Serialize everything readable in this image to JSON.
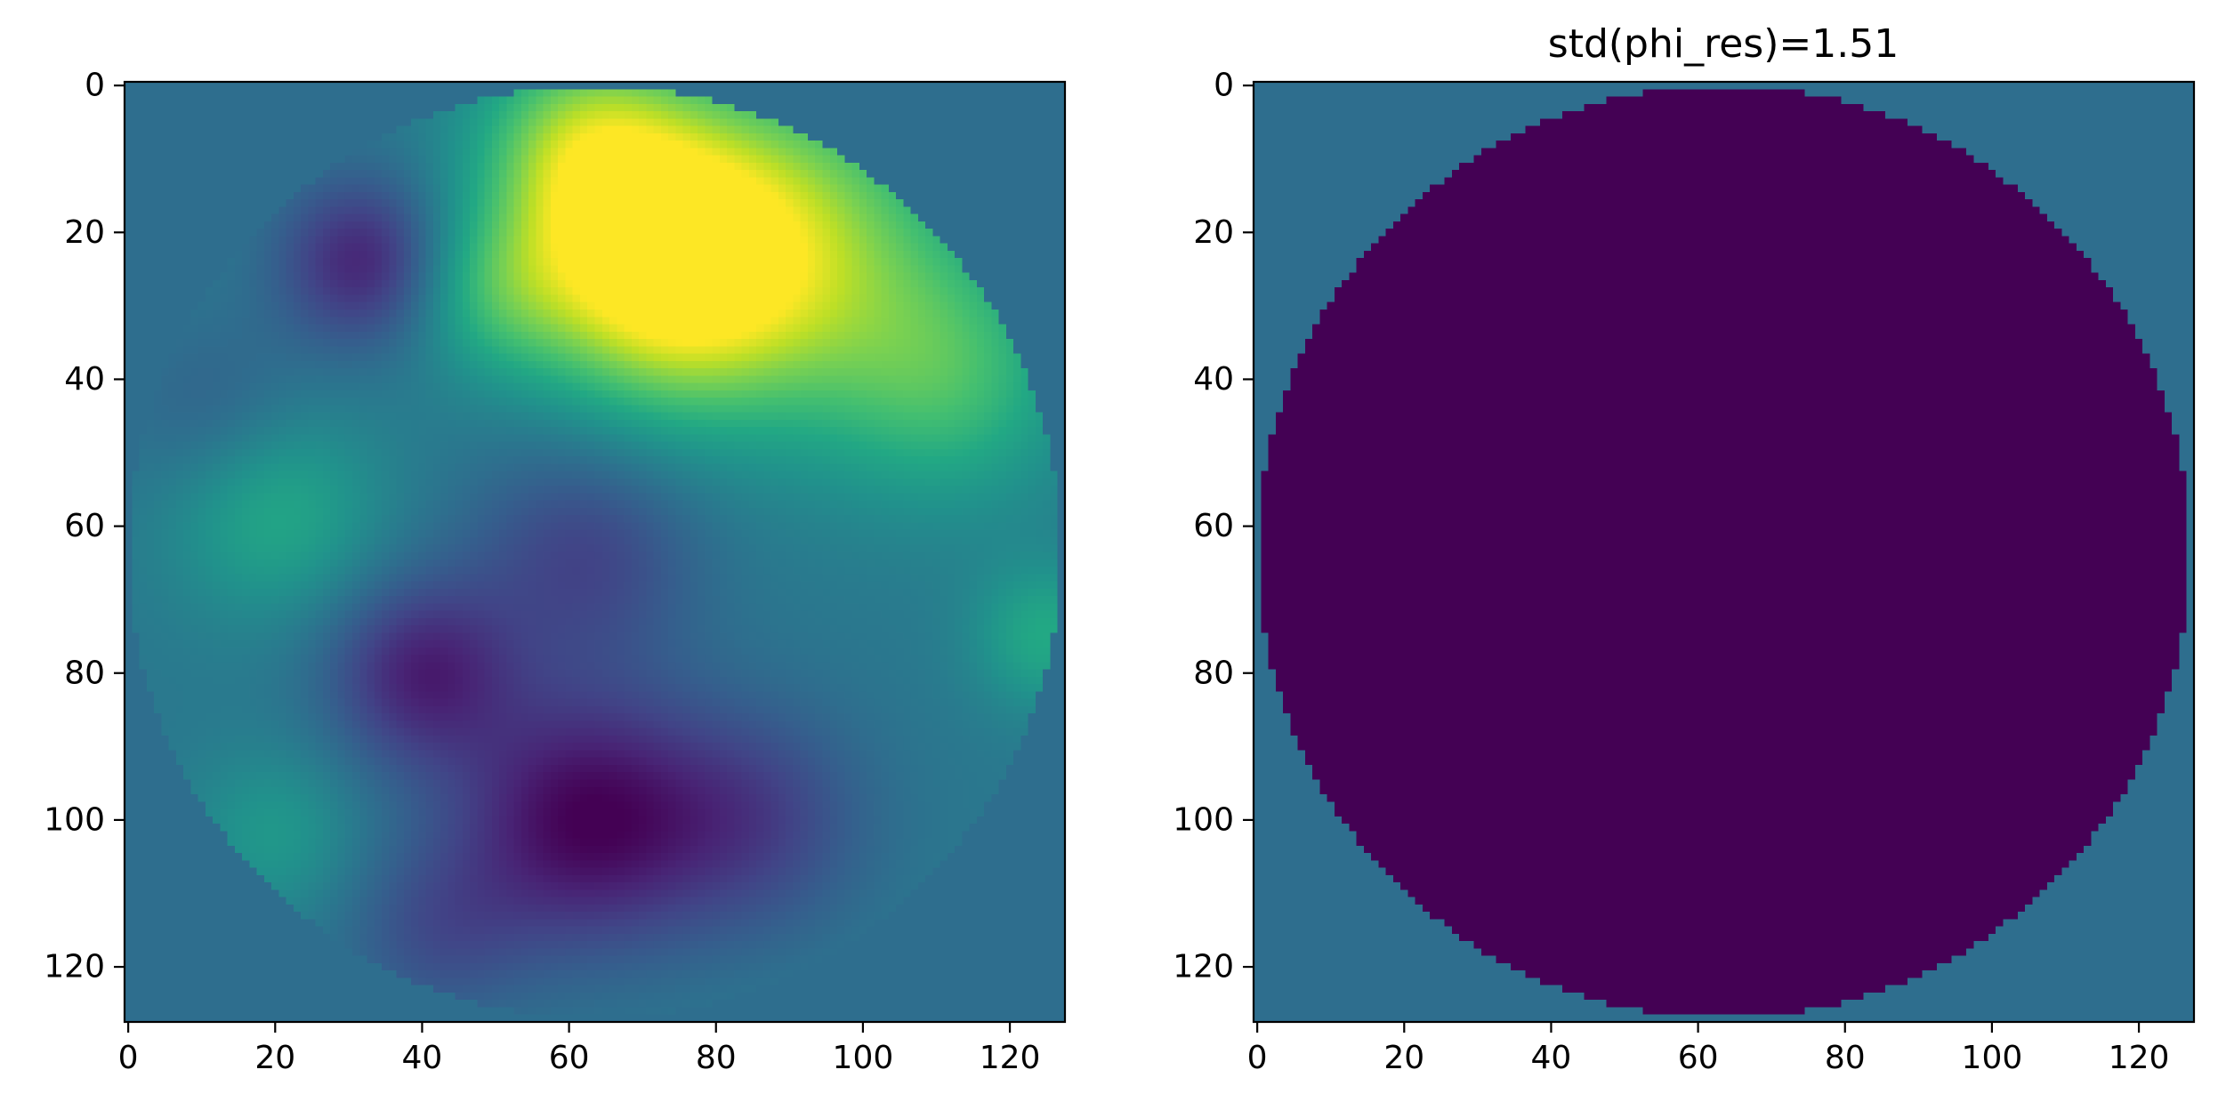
{
  "chart_data": [
    {
      "type": "heatmap",
      "title": "",
      "xlabel": "",
      "ylabel": "",
      "xlim": [
        -0.5,
        127.5
      ],
      "ylim": [
        127.5,
        -0.5
      ],
      "x_ticks": [
        0,
        20,
        40,
        60,
        80,
        100,
        120
      ],
      "y_ticks": [
        0,
        20,
        40,
        60,
        80,
        100,
        120
      ],
      "x_tick_labels": [
        "0",
        "20",
        "40",
        "60",
        "80",
        "100",
        "120"
      ],
      "y_tick_labels": [
        "0",
        "20",
        "40",
        "60",
        "80",
        "100",
        "120"
      ],
      "grid": 128,
      "aperture": {
        "center_x": 63.5,
        "center_y": 63.5,
        "radius": 63.5
      },
      "colormap": "viridis",
      "vmin": 0.0,
      "vmax": 1.0,
      "outside_value": 0.36,
      "field": {
        "baseline": 0.4,
        "bumps": [
          {
            "x": 72,
            "y": 24,
            "amplitude": 0.6,
            "sigma": 13
          },
          {
            "x": 90,
            "y": 22,
            "amplitude": 0.4,
            "sigma": 16
          },
          {
            "x": 62,
            "y": 8,
            "amplitude": 0.35,
            "sigma": 10
          },
          {
            "x": 112,
            "y": 40,
            "amplitude": 0.25,
            "sigma": 12
          },
          {
            "x": 50,
            "y": 28,
            "amplitude": 0.2,
            "sigma": 8
          },
          {
            "x": 20,
            "y": 58,
            "amplitude": 0.2,
            "sigma": 10
          },
          {
            "x": 125,
            "y": 75,
            "amplitude": 0.2,
            "sigma": 7
          },
          {
            "x": 20,
            "y": 102,
            "amplitude": 0.13,
            "sigma": 8
          },
          {
            "x": 32,
            "y": 24,
            "amplitude": -0.3,
            "sigma": 8
          },
          {
            "x": 62,
            "y": 100,
            "amplitude": -0.38,
            "sigma": 12
          },
          {
            "x": 40,
            "y": 80,
            "amplitude": -0.3,
            "sigma": 9
          },
          {
            "x": 85,
            "y": 100,
            "amplitude": -0.2,
            "sigma": 11
          },
          {
            "x": 62,
            "y": 64,
            "amplitude": -0.2,
            "sigma": 11
          },
          {
            "x": 42,
            "y": 115,
            "amplitude": -0.15,
            "sigma": 9
          },
          {
            "x": 12,
            "y": 45,
            "amplitude": -0.1,
            "sigma": 9
          }
        ]
      }
    },
    {
      "type": "heatmap",
      "title": "std(phi_res)=1.51",
      "xlabel": "",
      "ylabel": "",
      "xlim": [
        -0.5,
        127.5
      ],
      "ylim": [
        127.5,
        -0.5
      ],
      "x_ticks": [
        0,
        20,
        40,
        60,
        80,
        100,
        120
      ],
      "y_ticks": [
        0,
        20,
        40,
        60,
        80,
        100,
        120
      ],
      "x_tick_labels": [
        "0",
        "20",
        "40",
        "60",
        "80",
        "100",
        "120"
      ],
      "y_tick_labels": [
        "0",
        "20",
        "40",
        "60",
        "80",
        "100",
        "120"
      ],
      "grid": 128,
      "aperture": {
        "center_x": 63.5,
        "center_y": 63.5,
        "radius": 63.5
      },
      "colormap": "viridis",
      "vmin": 0.0,
      "vmax": 1.0,
      "inside_value": 0.0,
      "outside_value": 0.36
    }
  ]
}
